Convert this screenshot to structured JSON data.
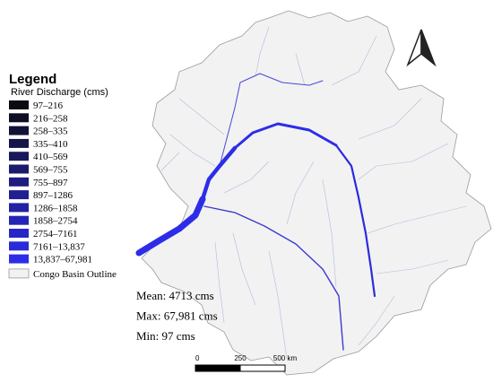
{
  "legend": {
    "title": "Legend",
    "subtitle": "River Discharge (cms)",
    "classes": [
      {
        "label": "97–216",
        "color": "#0b0b12"
      },
      {
        "label": "216–258",
        "color": "#0e0e26"
      },
      {
        "label": "258–335",
        "color": "#121238"
      },
      {
        "label": "335–410",
        "color": "#15154a"
      },
      {
        "label": "410–569",
        "color": "#18185c"
      },
      {
        "label": "569–755",
        "color": "#1b1b6e"
      },
      {
        "label": "755–897",
        "color": "#1d1d80"
      },
      {
        "label": "897–1286",
        "color": "#202092"
      },
      {
        "label": "1286–1858",
        "color": "#2222a4"
      },
      {
        "label": "1858–2754",
        "color": "#2424b6"
      },
      {
        "label": "2754–7161",
        "color": "#2727c8"
      },
      {
        "label": "7161–13,837",
        "color": "#2a2ad8"
      },
      {
        "label": "13,837–67,981",
        "color": "#2d2de8"
      }
    ],
    "outline_label": "Congo Basin Outline"
  },
  "stats": [
    "Mean: 4713 cms",
    "Max: 67,981 cms",
    "Min: 97 cms"
  ],
  "scale_bar": {
    "labels": [
      "0",
      "250",
      "500 km"
    ]
  }
}
